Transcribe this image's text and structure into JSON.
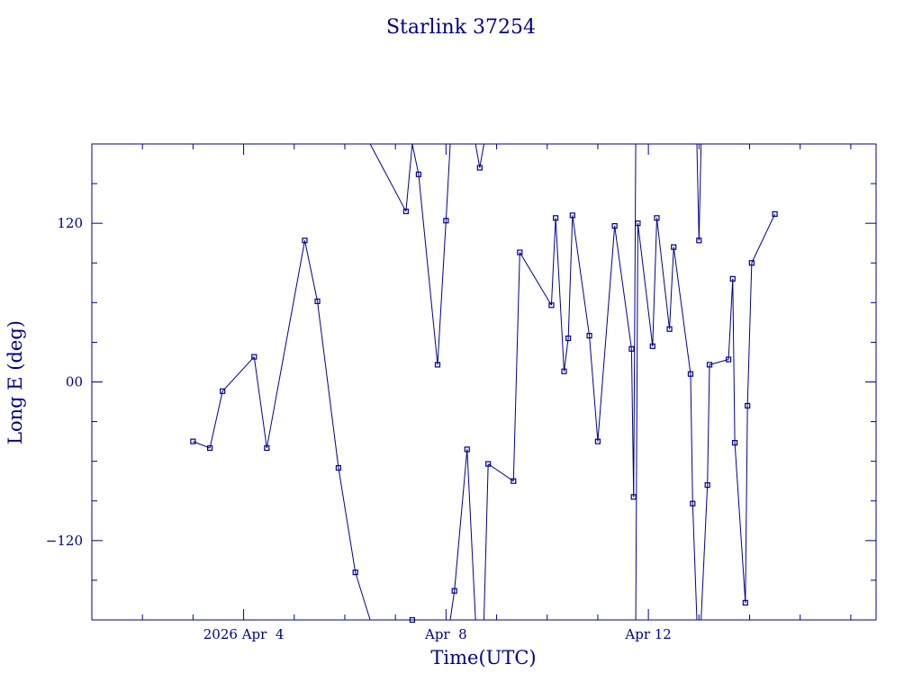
{
  "chart_data": {
    "type": "line",
    "title": "Starlink 37254",
    "xlabel": "Time(UTC)",
    "ylabel": "Long E (deg)",
    "x_range": [
      "2026-04-01T00:00",
      "2026-04-16T12:00"
    ],
    "ylim": [
      -180,
      180
    ],
    "grid": false,
    "color": "#00008b",
    "x_ticks": [
      {
        "t": "2026-04-04T00:00",
        "label": "2026 Apr  4"
      },
      {
        "t": "2026-04-08T00:00",
        "label": "Apr  8"
      },
      {
        "t": "2026-04-12T00:00",
        "label": "Apr 12"
      }
    ],
    "x_minor_ticks": [
      "2026-04-02T00:00",
      "2026-04-03T00:00",
      "2026-04-05T00:00",
      "2026-04-06T00:00",
      "2026-04-07T00:00",
      "2026-04-09T00:00",
      "2026-04-10T00:00",
      "2026-04-11T00:00",
      "2026-04-13T00:00",
      "2026-04-14T00:00",
      "2026-04-15T00:00",
      "2026-04-16T00:00"
    ],
    "y_ticks": [
      {
        "v": 120,
        "label": "120"
      },
      {
        "v": 0,
        "label": "00"
      },
      {
        "v": -120,
        "label": "−120"
      }
    ],
    "y_minor_ticks": [
      -150,
      -90,
      -60,
      -30,
      30,
      60,
      90,
      150
    ],
    "points": [
      {
        "t": "2026-04-03T00:00",
        "lon": -45,
        "marker": true
      },
      {
        "t": "2026-04-03T08:00",
        "lon": -50,
        "marker": true
      },
      {
        "t": "2026-04-03T14:00",
        "lon": -7,
        "marker": true
      },
      {
        "t": "2026-04-04T05:00",
        "lon": 19,
        "marker": true
      },
      {
        "t": "2026-04-04T11:00",
        "lon": -50,
        "marker": true
      },
      {
        "t": "2026-04-05T05:00",
        "lon": 107,
        "marker": true
      },
      {
        "t": "2026-04-05T11:00",
        "lon": 61,
        "marker": true
      },
      {
        "t": "2026-04-05T21:00",
        "lon": -65,
        "marker": true
      },
      {
        "t": "2026-04-06T05:00",
        "lon": -144,
        "marker": true
      },
      {
        "t": "2026-04-06T12:00",
        "lon": -180,
        "marker": false,
        "break_after": true
      },
      {
        "t": "2026-04-06T12:00",
        "lon": 180,
        "marker": false
      },
      {
        "t": "2026-04-07T05:00",
        "lon": 129,
        "marker": true
      },
      {
        "t": "2026-04-07T08:00",
        "lon": 180,
        "marker": false,
        "break_after": true
      },
      {
        "t": "2026-04-07T08:00",
        "lon": -180,
        "marker": true,
        "break_after": true
      },
      {
        "t": "2026-04-07T08:00",
        "lon": 180,
        "marker": false
      },
      {
        "t": "2026-04-07T11:00",
        "lon": 157,
        "marker": true
      },
      {
        "t": "2026-04-07T20:00",
        "lon": 13,
        "marker": true
      },
      {
        "t": "2026-04-08T00:00",
        "lon": 122,
        "marker": true
      },
      {
        "t": "2026-04-08T02:00",
        "lon": 180,
        "marker": false,
        "break_after": true
      },
      {
        "t": "2026-04-08T02:00",
        "lon": -180,
        "marker": false
      },
      {
        "t": "2026-04-08T04:00",
        "lon": -158,
        "marker": true
      },
      {
        "t": "2026-04-08T10:00",
        "lon": -51,
        "marker": true
      },
      {
        "t": "2026-04-08T14:00",
        "lon": -180,
        "marker": false,
        "break_after": true
      },
      {
        "t": "2026-04-08T14:00",
        "lon": 180,
        "marker": false
      },
      {
        "t": "2026-04-08T16:00",
        "lon": 162,
        "marker": true
      },
      {
        "t": "2026-04-08T18:00",
        "lon": 180,
        "marker": false,
        "break_after": true
      },
      {
        "t": "2026-04-08T18:00",
        "lon": -180,
        "marker": false
      },
      {
        "t": "2026-04-08T20:00",
        "lon": -62,
        "marker": true
      },
      {
        "t": "2026-04-09T08:00",
        "lon": -75,
        "marker": true
      },
      {
        "t": "2026-04-09T11:00",
        "lon": 98,
        "marker": true
      },
      {
        "t": "2026-04-10T02:00",
        "lon": 58,
        "marker": true
      },
      {
        "t": "2026-04-10T04:00",
        "lon": 124,
        "marker": true
      },
      {
        "t": "2026-04-10T08:00",
        "lon": 8,
        "marker": true
      },
      {
        "t": "2026-04-10T10:00",
        "lon": 33,
        "marker": true
      },
      {
        "t": "2026-04-10T12:00",
        "lon": 126,
        "marker": true
      },
      {
        "t": "2026-04-10T20:00",
        "lon": 35,
        "marker": true
      },
      {
        "t": "2026-04-11T00:00",
        "lon": -45,
        "marker": true
      },
      {
        "t": "2026-04-11T08:00",
        "lon": 118,
        "marker": true
      },
      {
        "t": "2026-04-11T16:00",
        "lon": 25,
        "marker": true
      },
      {
        "t": "2026-04-11T17:00",
        "lon": -87,
        "marker": true
      },
      {
        "t": "2026-04-11T18:00",
        "lon": 180,
        "marker": false,
        "break_after": true
      },
      {
        "t": "2026-04-11T18:00",
        "lon": -180,
        "marker": false
      },
      {
        "t": "2026-04-11T19:00",
        "lon": 120,
        "marker": true
      },
      {
        "t": "2026-04-12T02:00",
        "lon": 27,
        "marker": true
      },
      {
        "t": "2026-04-12T04:00",
        "lon": 124,
        "marker": true
      },
      {
        "t": "2026-04-12T10:00",
        "lon": 40,
        "marker": true
      },
      {
        "t": "2026-04-12T12:00",
        "lon": 102,
        "marker": true
      },
      {
        "t": "2026-04-12T20:00",
        "lon": 6,
        "marker": true
      },
      {
        "t": "2026-04-12T21:00",
        "lon": -92,
        "marker": true
      },
      {
        "t": "2026-04-12T23:00",
        "lon": -180,
        "marker": false,
        "break_after": true
      },
      {
        "t": "2026-04-12T23:00",
        "lon": 180,
        "marker": false
      },
      {
        "t": "2026-04-13T00:00",
        "lon": 107,
        "marker": true
      },
      {
        "t": "2026-04-13T01:00",
        "lon": 180,
        "marker": false,
        "break_after": true
      },
      {
        "t": "2026-04-13T01:00",
        "lon": -180,
        "marker": false
      },
      {
        "t": "2026-04-13T04:00",
        "lon": -78,
        "marker": true
      },
      {
        "t": "2026-04-13T05:00",
        "lon": 13,
        "marker": true
      },
      {
        "t": "2026-04-13T14:00",
        "lon": 17,
        "marker": true
      },
      {
        "t": "2026-04-13T16:00",
        "lon": 78,
        "marker": true
      },
      {
        "t": "2026-04-13T17:00",
        "lon": -46,
        "marker": true
      },
      {
        "t": "2026-04-13T22:00",
        "lon": -167,
        "marker": true
      },
      {
        "t": "2026-04-13T23:00",
        "lon": -18,
        "marker": true
      },
      {
        "t": "2026-04-14T01:00",
        "lon": 90,
        "marker": true
      },
      {
        "t": "2026-04-14T12:00",
        "lon": 127,
        "marker": true
      }
    ]
  }
}
